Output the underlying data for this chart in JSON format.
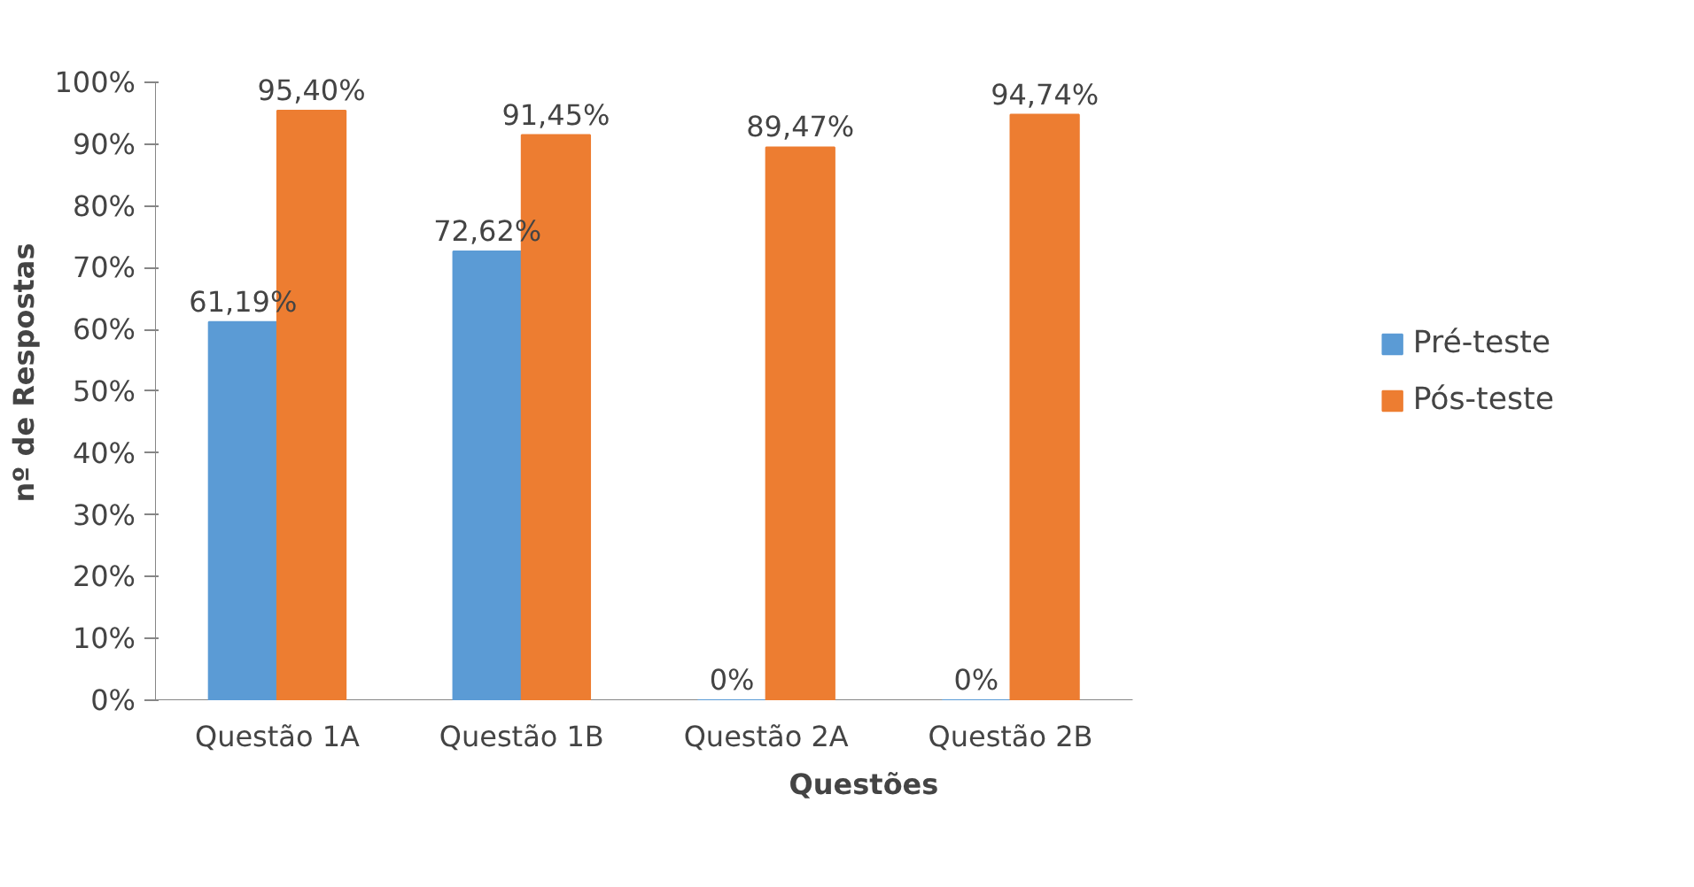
{
  "chart_data": {
    "type": "bar",
    "xlabel": "Questões",
    "ylabel": "nº de Respostas",
    "categories": [
      "Questão 1A",
      "Questão 1B",
      "Questão 2A",
      "Questão 2B"
    ],
    "series": [
      {
        "name": "Pré-teste",
        "color": "#5b9bd5",
        "values": [
          61.19,
          72.62,
          0,
          0
        ],
        "value_labels": [
          "61,19%",
          "72,62%",
          "0%",
          "0%"
        ]
      },
      {
        "name": "Pós-teste",
        "color": "#ed7d31",
        "values": [
          95.4,
          91.45,
          89.47,
          94.74
        ],
        "value_labels": [
          "95,40%",
          "91,45%",
          "89,47%",
          "94,74%"
        ]
      }
    ],
    "ylim": [
      0,
      100
    ],
    "yticks": [
      {
        "value": 0,
        "label": "0%"
      },
      {
        "value": 10,
        "label": "10%"
      },
      {
        "value": 20,
        "label": "20%"
      },
      {
        "value": 30,
        "label": "30%"
      },
      {
        "value": 40,
        "label": "40%"
      },
      {
        "value": 50,
        "label": "50%"
      },
      {
        "value": 60,
        "label": "60%"
      },
      {
        "value": 70,
        "label": "70%"
      },
      {
        "value": 80,
        "label": "80%"
      },
      {
        "value": 90,
        "label": "90%"
      },
      {
        "value": 100,
        "label": "100%"
      }
    ],
    "grid": false,
    "legend": "right"
  }
}
